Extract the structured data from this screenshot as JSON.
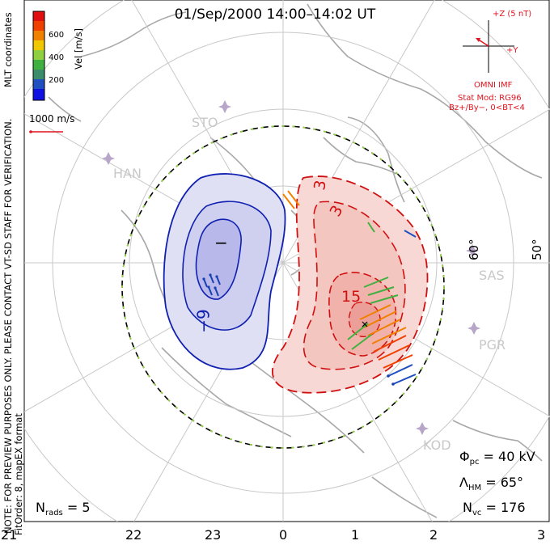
{
  "title": "01/Sep/2000 14:00–14:02 UT",
  "side_text": {
    "mlt_coords": "MLT coordinates",
    "preview_note": "NOTE: FOR PREVIEW PURPOSES ONLY. PLEASE CONTACT VT-SD STAFF FOR VERIFICATION.",
    "fit_order": "FitOrder: 8, mapEX format"
  },
  "colorbar": {
    "label": "Vel [m/s]",
    "ticks": [
      "600",
      "400",
      "200"
    ],
    "colors": [
      "#1010e0",
      "#2050c0",
      "#3a8c6a",
      "#40b040",
      "#90d040",
      "#f0c800",
      "#f08000",
      "#f04000",
      "#e01010"
    ]
  },
  "scale_vector": {
    "label": "1000 m/s"
  },
  "imf": {
    "bz_label": "+Z (5 nT)",
    "by_label": "+Y",
    "source": "OMNI IMF",
    "stat_mod": "Stat Mod: RG96",
    "condition": "Bz+/By−, 0<BT<4"
  },
  "stations": [
    "STO",
    "HAN",
    "SAS",
    "PGR",
    "KOD"
  ],
  "latitude_labels": [
    "60°",
    "50°"
  ],
  "contour_labels": {
    "neg_outer": "−9",
    "neg_inner": "−",
    "pos_outer": "3",
    "pos_mid": "3",
    "pos_inner": "15"
  },
  "stats": {
    "phi_pc_label": "Φ",
    "phi_pc_sub": "pc",
    "phi_pc_value": "= 40 kV",
    "lambda_hm_label": "Λ",
    "lambda_hm_sub": "HM",
    "lambda_hm_value": "= 65°",
    "n_vc_label": "N",
    "n_vc_sub": "vc",
    "n_vc_value": "= 176",
    "n_rads_label": "N",
    "n_rads_sub": "rads",
    "n_rads_value": "= 5"
  },
  "mlt_ticks": [
    "21",
    "22",
    "23",
    "0",
    "1",
    "2",
    "3"
  ],
  "chart_data": {
    "type": "polar-convection-map",
    "date": "01/Sep/2000",
    "time_range": "14:00–14:02 UT",
    "coordinates": "MLT coordinates",
    "velocity_scale_ms": [
      0,
      700
    ],
    "phi_pc_kV": 40,
    "lambda_hm_deg": 65,
    "n_vc": 176,
    "n_rads": 5,
    "fit_order": 8,
    "potential_contours_kV": [
      -9,
      -3,
      3,
      9,
      15
    ],
    "stations": [
      "STO",
      "HAN",
      "SAS",
      "PGR",
      "KOD"
    ]
  }
}
